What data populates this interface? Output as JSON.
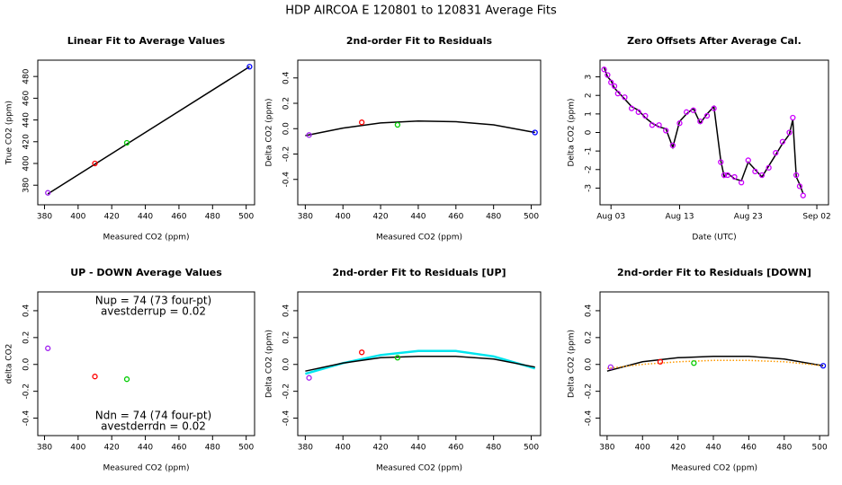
{
  "title": "HDP   AIRCOA E   120801 to 120831   Average Fits",
  "chart_data": [
    {
      "type": "scatter",
      "title": "Linear Fit to Average Values",
      "xlabel": "Measured CO2 (ppm)",
      "ylabel": "True CO2 (ppm)",
      "xlim": [
        376,
        505
      ],
      "xticks": [
        380,
        400,
        420,
        440,
        460,
        480,
        500
      ],
      "ylim": [
        362,
        495
      ],
      "yticks": [
        380,
        400,
        420,
        440,
        460,
        480
      ],
      "series": [
        {
          "type": "line",
          "color": "#000000",
          "x": [
            382,
            502
          ],
          "values": [
            372,
            489
          ]
        },
        {
          "type": "scatter",
          "x": [
            382,
            410,
            429,
            502
          ],
          "values": [
            373,
            400,
            419,
            489
          ],
          "colors": [
            "#a020f0",
            "#ff0000",
            "#00cc00",
            "#0000ff"
          ]
        }
      ]
    },
    {
      "type": "scatter",
      "title": "2nd-order Fit to Residuals",
      "xlabel": "Measured CO2 (ppm)",
      "ylabel": "Delta CO2 (ppm)",
      "xlim": [
        376,
        505
      ],
      "xticks": [
        380,
        400,
        420,
        440,
        460,
        480,
        500
      ],
      "ylim": [
        -0.6,
        0.54
      ],
      "yticks": [
        -0.4,
        -0.2,
        {
          "value": 0,
          "label": "0.0"
        },
        0.2,
        0.4
      ],
      "series": [
        {
          "type": "line",
          "color": "#000000",
          "x": [
            380,
            400,
            420,
            440,
            460,
            480,
            502
          ],
          "values": [
            -0.055,
            0.005,
            0.045,
            0.06,
            0.055,
            0.03,
            -0.03
          ]
        },
        {
          "type": "scatter",
          "x": [
            382,
            410,
            429,
            502
          ],
          "values": [
            -0.05,
            0.05,
            0.03,
            -0.03
          ],
          "colors": [
            "#a020f0",
            "#ff0000",
            "#00cc00",
            "#0000ff"
          ]
        }
      ]
    },
    {
      "type": "scatter",
      "title": "Zero Offsets After Average Cal.",
      "xlabel": "Date (UTC)",
      "ylabel": "Delta CO2 (ppm)",
      "xlim": [
        1.4,
        34.7
      ],
      "xticks": [
        {
          "value": 3,
          "label": "Aug 03"
        },
        {
          "value": 13,
          "label": "Aug 13"
        },
        {
          "value": 23,
          "label": "Aug 23"
        },
        {
          "value": 33,
          "label": "Sep 02"
        }
      ],
      "ylim": [
        -3.9,
        3.9
      ],
      "yticks": [
        -3,
        -2,
        -1,
        0,
        1,
        2,
        3
      ],
      "series": [
        {
          "type": "line",
          "color": "#000000",
          "x": [
            2,
            2.5,
            3,
            3.5,
            4,
            5,
            6,
            7,
            8,
            9,
            10,
            11,
            12,
            13,
            14,
            15,
            16,
            17,
            18,
            19,
            19.5,
            20,
            21,
            22,
            23,
            24,
            25,
            26,
            27,
            28,
            29,
            29.5,
            30,
            30.5,
            31
          ],
          "values": [
            3.5,
            3.0,
            2.8,
            2.4,
            2.2,
            1.8,
            1.4,
            1.2,
            0.8,
            0.5,
            0.3,
            0.2,
            -0.8,
            0.6,
            1.0,
            1.3,
            0.5,
            1.0,
            1.4,
            -1.5,
            -2.4,
            -2.2,
            -2.5,
            -2.6,
            -1.6,
            -2.0,
            -2.4,
            -1.8,
            -1.2,
            -0.6,
            -0.1,
            0.7,
            -2.4,
            -2.8,
            -3.3
          ]
        },
        {
          "type": "scatter",
          "color": "#cc00ff",
          "x": [
            2,
            2.5,
            3,
            3.5,
            4,
            5,
            6,
            7,
            8,
            9,
            10,
            11,
            12,
            13,
            14,
            15,
            16,
            17,
            18,
            19,
            19.5,
            20,
            21,
            22,
            23,
            24,
            25,
            26,
            27,
            28,
            29,
            29.5,
            30,
            30.5,
            31
          ],
          "values": [
            3.4,
            3.1,
            2.7,
            2.5,
            2.1,
            1.9,
            1.3,
            1.1,
            0.9,
            0.4,
            0.4,
            0.1,
            -0.7,
            0.5,
            1.1,
            1.2,
            0.6,
            0.9,
            1.3,
            -1.6,
            -2.3,
            -2.3,
            -2.4,
            -2.7,
            -1.5,
            -2.1,
            -2.3,
            -1.9,
            -1.1,
            -0.5,
            0.0,
            0.8,
            -2.3,
            -2.9,
            -3.4
          ]
        }
      ]
    },
    {
      "type": "scatter",
      "title": "UP - DOWN Average Values",
      "xlabel": "Measured CO2 (ppm)",
      "ylabel": "delta CO2",
      "xlim": [
        376,
        505
      ],
      "xticks": [
        380,
        400,
        420,
        440,
        460,
        480,
        500
      ],
      "ylim": [
        -0.53,
        0.54
      ],
      "yticks": [
        -0.4,
        -0.2,
        {
          "value": 0,
          "label": "0.0"
        },
        0.2,
        0.4
      ],
      "annotations": [
        "Nup = 74 (73 four-pt)",
        "avestderrup =  0.02",
        "Ndn = 74 (74 four-pt)",
        "avestderrdn =  0.02"
      ],
      "series": [
        {
          "type": "scatter",
          "x": [
            382,
            410,
            429
          ],
          "values": [
            0.12,
            -0.09,
            -0.11
          ],
          "colors": [
            "#a020f0",
            "#ff0000",
            "#00cc00"
          ]
        }
      ]
    },
    {
      "type": "scatter",
      "title": "2nd-order Fit to Residuals [UP]",
      "xlabel": "Measured CO2 (ppm)",
      "ylabel": "Delta CO2 (ppm)",
      "xlim": [
        376,
        505
      ],
      "xticks": [
        380,
        400,
        420,
        440,
        460,
        480,
        500
      ],
      "ylim": [
        -0.53,
        0.54
      ],
      "yticks": [
        -0.4,
        -0.2,
        {
          "value": 0,
          "label": "0.0"
        },
        0.2,
        0.4
      ],
      "series": [
        {
          "type": "line",
          "color": "#00e5ee",
          "width": 2.5,
          "x": [
            380,
            400,
            420,
            440,
            460,
            480,
            502
          ],
          "values": [
            -0.07,
            0.01,
            0.07,
            0.1,
            0.1,
            0.06,
            -0.03
          ]
        },
        {
          "type": "line",
          "color": "#000000",
          "x": [
            380,
            400,
            420,
            440,
            460,
            480,
            502
          ],
          "values": [
            -0.05,
            0.01,
            0.05,
            0.06,
            0.06,
            0.04,
            -0.02
          ]
        },
        {
          "type": "scatter",
          "x": [
            382,
            410,
            429
          ],
          "values": [
            -0.1,
            0.09,
            0.05
          ],
          "colors": [
            "#a020f0",
            "#ff0000",
            "#00cc00"
          ]
        }
      ]
    },
    {
      "type": "scatter",
      "title": "2nd-order Fit to Residuals [DOWN]",
      "xlabel": "Measured CO2 (ppm)",
      "ylabel": "Delta CO2 (ppm)",
      "xlim": [
        376,
        505
      ],
      "xticks": [
        380,
        400,
        420,
        440,
        460,
        480,
        500
      ],
      "ylim": [
        -0.53,
        0.54
      ],
      "yticks": [
        -0.4,
        -0.2,
        {
          "value": 0,
          "label": "0.0"
        },
        0.2,
        0.4
      ],
      "series": [
        {
          "type": "line",
          "color": "#000000",
          "x": [
            380,
            400,
            420,
            440,
            460,
            480,
            502
          ],
          "values": [
            -0.05,
            0.02,
            0.05,
            0.06,
            0.06,
            0.04,
            -0.01
          ]
        },
        {
          "type": "line",
          "color": "#ff9900",
          "dotted": true,
          "x": [
            380,
            400,
            420,
            440,
            460,
            480,
            502
          ],
          "values": [
            -0.03,
            0.0,
            0.02,
            0.03,
            0.03,
            0.02,
            -0.01
          ]
        },
        {
          "type": "scatter",
          "x": [
            382,
            410,
            429,
            502
          ],
          "values": [
            -0.02,
            0.02,
            0.01,
            -0.01
          ],
          "colors": [
            "#a020f0",
            "#ff0000",
            "#00cc00",
            "#0000ff"
          ]
        }
      ]
    }
  ]
}
